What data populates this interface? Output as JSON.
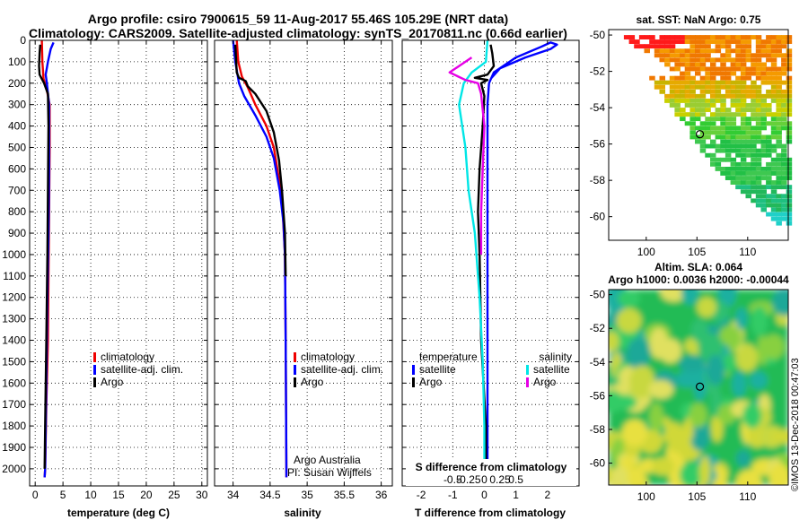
{
  "header": {
    "title1": "Argo profile: csiro 7900615_59 11-Aug-2017 55.46S 105.29E (NRT data)",
    "title2": "Climatology: CARS2009. Satellite-adjusted climatology: synTS_20170811.nc (0.66d earlier)"
  },
  "side_label": "©IMOS 13-Dec-2018 00:47:03",
  "credits": {
    "line1": "Argo Australia",
    "line2": "PI: Susan Wijffels"
  },
  "colors": {
    "clim": "#ee0000",
    "sat": "#0000ff",
    "argo": "#000000",
    "sat_s": "#00e6e6",
    "argo_s": "#e600e6"
  },
  "chart_data": [
    {
      "id": "temperature",
      "type": "line",
      "xlabel": "temperature (deg C)",
      "ylabel": "",
      "xlim": [
        -1,
        31
      ],
      "ylim": [
        2080,
        0
      ],
      "x_ticks": [
        0,
        5,
        10,
        15,
        20,
        25,
        30
      ],
      "y_ticks": [
        0,
        100,
        200,
        300,
        400,
        500,
        600,
        700,
        800,
        900,
        1000,
        1100,
        1200,
        1300,
        1400,
        1500,
        1600,
        1700,
        1800,
        1900,
        2000
      ],
      "grid": true,
      "legend": [
        {
          "label": "climatology",
          "color": "#ee0000"
        },
        {
          "label": "satellite-adj. clim.",
          "color": "#0000ff"
        },
        {
          "label": "Argo",
          "color": "#000000"
        }
      ],
      "series": [
        {
          "name": "climatology",
          "color": "#ee0000",
          "points": [
            [
              1.2,
              0
            ],
            [
              1.3,
              100
            ],
            [
              1.5,
              180
            ],
            [
              2.0,
              220
            ],
            [
              2.6,
              300
            ],
            [
              2.6,
              500
            ],
            [
              2.5,
              800
            ],
            [
              2.4,
              1100
            ],
            [
              2.3,
              1400
            ],
            [
              2.0,
              1700
            ],
            [
              1.8,
              2000
            ],
            [
              1.7,
              2040
            ]
          ]
        },
        {
          "name": "satellite-adj. clim.",
          "color": "#0000ff",
          "points": [
            [
              3.3,
              10
            ],
            [
              2.8,
              40
            ],
            [
              2.3,
              100
            ],
            [
              1.9,
              160
            ],
            [
              2.1,
              200
            ],
            [
              2.5,
              300
            ],
            [
              2.5,
              600
            ],
            [
              2.4,
              900
            ],
            [
              2.2,
              1200
            ],
            [
              2.0,
              1600
            ],
            [
              1.8,
              2000
            ],
            [
              1.7,
              2040
            ]
          ]
        },
        {
          "name": "Argo",
          "color": "#000000",
          "points": [
            [
              0.9,
              20
            ],
            [
              0.8,
              60
            ],
            [
              0.7,
              120
            ],
            [
              0.8,
              160
            ],
            [
              1.6,
              200
            ],
            [
              2.3,
              250
            ],
            [
              2.4,
              400
            ],
            [
              2.3,
              700
            ],
            [
              2.2,
              1000
            ],
            [
              2.0,
              1400
            ],
            [
              1.8,
              1800
            ],
            [
              1.7,
              2000
            ]
          ]
        }
      ]
    },
    {
      "id": "salinity",
      "type": "line",
      "xlabel": "salinity",
      "ylabel": "",
      "xlim": [
        33.75,
        36.15
      ],
      "ylim": [
        2080,
        0
      ],
      "x_ticks": [
        34,
        34.5,
        35,
        35.5,
        36
      ],
      "grid": true,
      "legend": [
        {
          "label": "climatology",
          "color": "#ee0000"
        },
        {
          "label": "satellite-adj. clim.",
          "color": "#0000ff"
        },
        {
          "label": "Argo",
          "color": "#000000"
        }
      ],
      "series": [
        {
          "name": "climatology",
          "color": "#ee0000",
          "points": [
            [
              34.05,
              0
            ],
            [
              34.07,
              100
            ],
            [
              34.12,
              170
            ],
            [
              34.2,
              220
            ],
            [
              34.3,
              300
            ],
            [
              34.45,
              400
            ],
            [
              34.55,
              500
            ],
            [
              34.62,
              650
            ],
            [
              34.67,
              800
            ],
            [
              34.7,
              1000
            ],
            [
              34.71,
              1400
            ],
            [
              34.72,
              2000
            ],
            [
              34.72,
              2040
            ]
          ]
        },
        {
          "name": "satellite-adj. clim.",
          "color": "#0000ff",
          "points": [
            [
              34.0,
              0
            ],
            [
              34.03,
              100
            ],
            [
              34.08,
              200
            ],
            [
              34.15,
              260
            ],
            [
              34.3,
              350
            ],
            [
              34.45,
              450
            ],
            [
              34.55,
              550
            ],
            [
              34.63,
              700
            ],
            [
              34.68,
              850
            ],
            [
              34.7,
              1000
            ],
            [
              34.71,
              1400
            ],
            [
              34.72,
              2000
            ],
            [
              34.72,
              2040
            ]
          ]
        },
        {
          "name": "Argo",
          "color": "#000000",
          "points": [
            [
              34.03,
              20
            ],
            [
              34.05,
              150
            ],
            [
              34.08,
              175
            ],
            [
              34.17,
              190
            ],
            [
              34.2,
              215
            ],
            [
              34.3,
              250
            ],
            [
              34.45,
              330
            ],
            [
              34.55,
              430
            ],
            [
              34.62,
              560
            ],
            [
              34.66,
              700
            ],
            [
              34.7,
              900
            ],
            [
              34.71,
              1100
            ]
          ]
        }
      ]
    },
    {
      "id": "difference",
      "type": "line",
      "xlabel": "T difference from climatology",
      "x2label": "S difference from climatology",
      "ylabel": "",
      "xlim": [
        -2.6,
        3.0
      ],
      "ylim": [
        2080,
        0
      ],
      "x_ticks": [
        -2,
        -1,
        0,
        1,
        2
      ],
      "x2_ticks": [
        "-0.5",
        "-0.25",
        "0",
        "0.25",
        "0.5"
      ],
      "grid": true,
      "legend_left_title": "temperature",
      "legend_right_title": "salinity",
      "legend": [
        {
          "label": "satellite",
          "color": "#0000ff"
        },
        {
          "label": "Argo",
          "color": "#000000"
        },
        {
          "label": "satellite",
          "color": "#00e6e6"
        },
        {
          "label": "Argo",
          "color": "#e600e6"
        }
      ],
      "series": [
        {
          "name": "temperature satellite",
          "color": "#0000ff",
          "points": [
            [
              0.2,
              180
            ],
            [
              0.5,
              130
            ],
            [
              1.3,
              80
            ],
            [
              2.1,
              40
            ],
            [
              2.3,
              20
            ],
            [
              2.1,
              10
            ],
            [
              1.8,
              30
            ],
            [
              1.0,
              80
            ],
            [
              0.3,
              150
            ],
            [
              0.15,
              200
            ],
            [
              0.1,
              300
            ],
            [
              0.1,
              600
            ],
            [
              0.1,
              1000
            ],
            [
              0.1,
              1400
            ],
            [
              0.1,
              1800
            ],
            [
              0.1,
              2000
            ]
          ]
        },
        {
          "name": "temperature Argo",
          "color": "#000000",
          "points": [
            [
              0.2,
              20
            ],
            [
              0.25,
              60
            ],
            [
              0.3,
              120
            ],
            [
              0.1,
              160
            ],
            [
              -0.3,
              175
            ],
            [
              0.1,
              185
            ],
            [
              -0.1,
              200
            ],
            [
              0.0,
              260
            ],
            [
              -0.05,
              400
            ],
            [
              -0.15,
              600
            ],
            [
              -0.2,
              800
            ],
            [
              -0.15,
              1000
            ],
            [
              -0.1,
              1400
            ],
            [
              0.05,
              1800
            ],
            [
              0.05,
              2000
            ]
          ]
        },
        {
          "name": "salinity satellite",
          "color": "#00e6e6",
          "points": [
            [
              0.1,
              0
            ],
            [
              0.05,
              100
            ],
            [
              -0.4,
              150
            ],
            [
              -0.65,
              200
            ],
            [
              -0.8,
              300
            ],
            [
              -0.6,
              500
            ],
            [
              -0.5,
              700
            ],
            [
              -0.3,
              900
            ],
            [
              -0.15,
              1200
            ],
            [
              -0.05,
              1500
            ],
            [
              0.0,
              1800
            ],
            [
              0.0,
              2000
            ]
          ]
        },
        {
          "name": "salinity Argo",
          "color": "#e600e6",
          "points": [
            [
              -0.4,
              80
            ],
            [
              -1.1,
              150
            ],
            [
              -0.6,
              185
            ],
            [
              -0.2,
              200
            ],
            [
              -0.1,
              250
            ],
            [
              0.0,
              400
            ],
            [
              -0.05,
              600
            ],
            [
              -0.1,
              800
            ],
            [
              -0.1,
              1000
            ]
          ]
        }
      ]
    },
    {
      "id": "sst_map",
      "type": "heatmap",
      "title": "sat. SST: NaN Argo: 0.75",
      "xlim": [
        96.3,
        114
      ],
      "ylim": [
        -61.3,
        -49.7
      ],
      "x_ticks": [
        100,
        105,
        110
      ],
      "y_ticks": [
        -50,
        -52,
        -54,
        -56,
        -58,
        -60
      ],
      "marker": [
        105.29,
        -55.46
      ]
    },
    {
      "id": "sla_map",
      "type": "heatmap",
      "title": "Altim. SLA: 0.064",
      "subtitle": "Argo h1000: 0.0036 h2000: -0.00044",
      "xlim": [
        96.3,
        114
      ],
      "ylim": [
        -61.3,
        -49.7
      ],
      "x_ticks": [
        100,
        105,
        110
      ],
      "y_ticks": [
        -50,
        -52,
        -54,
        -56,
        -58,
        -60
      ],
      "marker": [
        105.29,
        -55.46
      ]
    }
  ]
}
